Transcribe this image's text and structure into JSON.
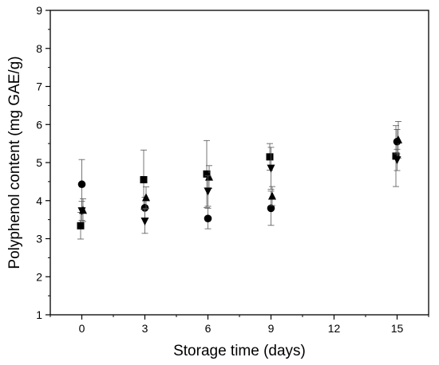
{
  "chart_data": {
    "type": "scatter",
    "title": "",
    "xlabel": "Storage time (days)",
    "ylabel": "Polyphenol content (mg GAE/g)",
    "xlim": [
      -1.5,
      16.5
    ],
    "ylim": [
      1,
      9
    ],
    "xticks": [
      0,
      3,
      6,
      9,
      12,
      15
    ],
    "yticks": [
      1,
      2,
      3,
      4,
      5,
      6,
      7,
      8,
      9
    ],
    "grid": false,
    "legend": "none",
    "error_bars": true,
    "series": [
      {
        "marker": "square",
        "points": [
          {
            "x": 0,
            "y": 3.34,
            "err": 0.35
          },
          {
            "x": 3,
            "y": 4.55,
            "err": 0.78
          },
          {
            "x": 6,
            "y": 4.7,
            "err": 0.88
          },
          {
            "x": 9,
            "y": 5.15,
            "err": 0.35
          },
          {
            "x": 15,
            "y": 5.17,
            "err": 0.8
          }
        ]
      },
      {
        "marker": "circle",
        "points": [
          {
            "x": 0,
            "y": 4.43,
            "err": 0.65
          },
          {
            "x": 3,
            "y": 3.81,
            "err": 0.28
          },
          {
            "x": 6,
            "y": 3.53,
            "err": 0.27
          },
          {
            "x": 9,
            "y": 3.8,
            "err": 0.45
          },
          {
            "x": 15,
            "y": 5.55,
            "err": 0.32
          }
        ]
      },
      {
        "marker": "triangle-up",
        "points": [
          {
            "x": 0,
            "y": 3.75,
            "err": 0.3
          },
          {
            "x": 3,
            "y": 4.08,
            "err": 0.28
          },
          {
            "x": 6,
            "y": 4.62,
            "err": 0.3
          },
          {
            "x": 9,
            "y": 4.12,
            "err": 0.25
          },
          {
            "x": 15,
            "y": 5.6,
            "err": 0.48
          }
        ]
      },
      {
        "marker": "triangle-down",
        "points": [
          {
            "x": 0,
            "y": 3.73,
            "err": 0.25
          },
          {
            "x": 3,
            "y": 3.46,
            "err": 0.32
          },
          {
            "x": 6,
            "y": 4.25,
            "err": 0.4
          },
          {
            "x": 9,
            "y": 4.85,
            "err": 0.55
          },
          {
            "x": 15,
            "y": 5.07,
            "err": 0.28
          }
        ]
      }
    ]
  }
}
